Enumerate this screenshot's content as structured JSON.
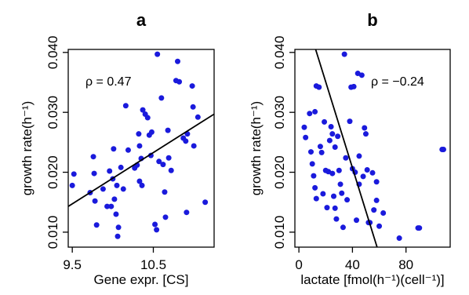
{
  "chart_data": [
    {
      "type": "scatter",
      "panel_label": "a",
      "xlabel": "Gene expr. [CS]",
      "ylabel": "growth rate(h⁻¹)",
      "xlim": [
        9.45,
        11.25
      ],
      "ylim": [
        0.0075,
        0.0405
      ],
      "xticks": [
        9.5,
        10.5
      ],
      "xtick_labels": [
        "9.5",
        "10.5"
      ],
      "yticks": [
        0.01,
        0.02,
        0.03,
        0.04
      ],
      "ytick_labels": [
        "0.010",
        "0.020",
        "0.030",
        "0.040"
      ],
      "annotation": "ρ = 0.47",
      "point_color": "#1a1adc",
      "fit_line": [
        [
          9.45,
          0.0143
        ],
        [
          11.25,
          0.0297
        ]
      ],
      "points": [
        [
          9.5,
          0.0178
        ],
        [
          9.52,
          0.0197
        ],
        [
          9.72,
          0.0166
        ],
        [
          9.76,
          0.0226
        ],
        [
          9.77,
          0.0198
        ],
        [
          9.78,
          0.0152
        ],
        [
          9.8,
          0.0112
        ],
        [
          9.88,
          0.0172
        ],
        [
          9.93,
          0.0143
        ],
        [
          9.96,
          0.0202
        ],
        [
          9.98,
          0.0143
        ],
        [
          10.0,
          0.0189
        ],
        [
          10.01,
          0.0239
        ],
        [
          10.02,
          0.0155
        ],
        [
          10.04,
          0.013
        ],
        [
          10.05,
          0.0178
        ],
        [
          10.06,
          0.0093
        ],
        [
          10.07,
          0.0108
        ],
        [
          10.1,
          0.0208
        ],
        [
          10.13,
          0.0172
        ],
        [
          10.16,
          0.0311
        ],
        [
          10.19,
          0.0237
        ],
        [
          10.27,
          0.0207
        ],
        [
          10.3,
          0.0212
        ],
        [
          10.32,
          0.0264
        ],
        [
          10.33,
          0.0244
        ],
        [
          10.33,
          0.0185
        ],
        [
          10.35,
          0.0223
        ],
        [
          10.36,
          0.0178
        ],
        [
          10.37,
          0.0304
        ],
        [
          10.4,
          0.0297
        ],
        [
          10.43,
          0.0291
        ],
        [
          10.45,
          0.0262
        ],
        [
          10.47,
          0.0228
        ],
        [
          10.48,
          0.0267
        ],
        [
          10.52,
          0.0113
        ],
        [
          10.54,
          0.0104
        ],
        [
          10.55,
          0.0397
        ],
        [
          10.57,
          0.0218
        ],
        [
          10.6,
          0.0324
        ],
        [
          10.62,
          0.0213
        ],
        [
          10.64,
          0.0167
        ],
        [
          10.65,
          0.0125
        ],
        [
          10.68,
          0.027
        ],
        [
          10.69,
          0.0224
        ],
        [
          10.72,
          0.0203
        ],
        [
          10.78,
          0.0353
        ],
        [
          10.8,
          0.0385
        ],
        [
          10.82,
          0.0351
        ],
        [
          10.87,
          0.0257
        ],
        [
          10.9,
          0.0252
        ],
        [
          10.91,
          0.0133
        ],
        [
          10.92,
          0.0264
        ],
        [
          10.98,
          0.0344
        ],
        [
          10.99,
          0.0309
        ],
        [
          11.0,
          0.0244
        ],
        [
          11.05,
          0.0292
        ],
        [
          11.14,
          0.015
        ]
      ]
    },
    {
      "type": "scatter",
      "panel_label": "b",
      "xlabel": "lactate  [fmol(h⁻¹)(cell⁻¹)]",
      "ylabel": "growth rate(h⁻¹)",
      "xlim": [
        -3,
        113
      ],
      "ylim": [
        0.0075,
        0.0405
      ],
      "xticks": [
        0,
        40,
        80
      ],
      "xtick_labels": [
        "0",
        "40",
        "80"
      ],
      "yticks": [
        0.01,
        0.02,
        0.03,
        0.04
      ],
      "ytick_labels": [
        "0.010",
        "0.020",
        "0.030",
        "0.040"
      ],
      "annotation": "ρ = −0.24",
      "point_color": "#1a1adc",
      "fit_line": [
        [
          12.5,
          0.0405
        ],
        [
          58.4,
          0.0075
        ]
      ],
      "points": [
        [
          4,
          0.0275
        ],
        [
          5,
          0.0258
        ],
        [
          8,
          0.0298
        ],
        [
          9,
          0.0234
        ],
        [
          10,
          0.0214
        ],
        [
          11,
          0.0194
        ],
        [
          12,
          0.0301
        ],
        [
          12,
          0.0174
        ],
        [
          13,
          0.0344
        ],
        [
          13,
          0.0156
        ],
        [
          15,
          0.0342
        ],
        [
          16,
          0.0243
        ],
        [
          17,
          0.0233
        ],
        [
          18,
          0.0164
        ],
        [
          19,
          0.0284
        ],
        [
          20,
          0.0203
        ],
        [
          21,
          0.0141
        ],
        [
          22,
          0.0201
        ],
        [
          23,
          0.0253
        ],
        [
          24,
          0.0276
        ],
        [
          25,
          0.0264
        ],
        [
          25,
          0.0198
        ],
        [
          26,
          0.016
        ],
        [
          27,
          0.0242
        ],
        [
          27,
          0.014
        ],
        [
          28,
          0.0122
        ],
        [
          29,
          0.026
        ],
        [
          30,
          0.0203
        ],
        [
          31,
          0.018
        ],
        [
          32,
          0.0165
        ],
        [
          33,
          0.0108
        ],
        [
          34,
          0.0397
        ],
        [
          35,
          0.0224
        ],
        [
          36,
          0.0154
        ],
        [
          38,
          0.0285
        ],
        [
          39,
          0.0342
        ],
        [
          40,
          0.0206
        ],
        [
          41,
          0.0343
        ],
        [
          42,
          0.02
        ],
        [
          43,
          0.012
        ],
        [
          44,
          0.0365
        ],
        [
          45,
          0.0227
        ],
        [
          45,
          0.018
        ],
        [
          47,
          0.0362
        ],
        [
          48,
          0.0193
        ],
        [
          49,
          0.0274
        ],
        [
          50,
          0.0264
        ],
        [
          51,
          0.0204
        ],
        [
          52,
          0.0116
        ],
        [
          53,
          0.0116
        ],
        [
          55,
          0.0199
        ],
        [
          56,
          0.0137
        ],
        [
          58,
          0.0184
        ],
        [
          58,
          0.0153
        ],
        [
          60,
          0.011
        ],
        [
          63,
          0.0132
        ],
        [
          75,
          0.009
        ],
        [
          89,
          0.0107
        ],
        [
          90,
          0.0107
        ],
        [
          107,
          0.0238
        ],
        [
          108,
          0.0238
        ]
      ]
    }
  ]
}
